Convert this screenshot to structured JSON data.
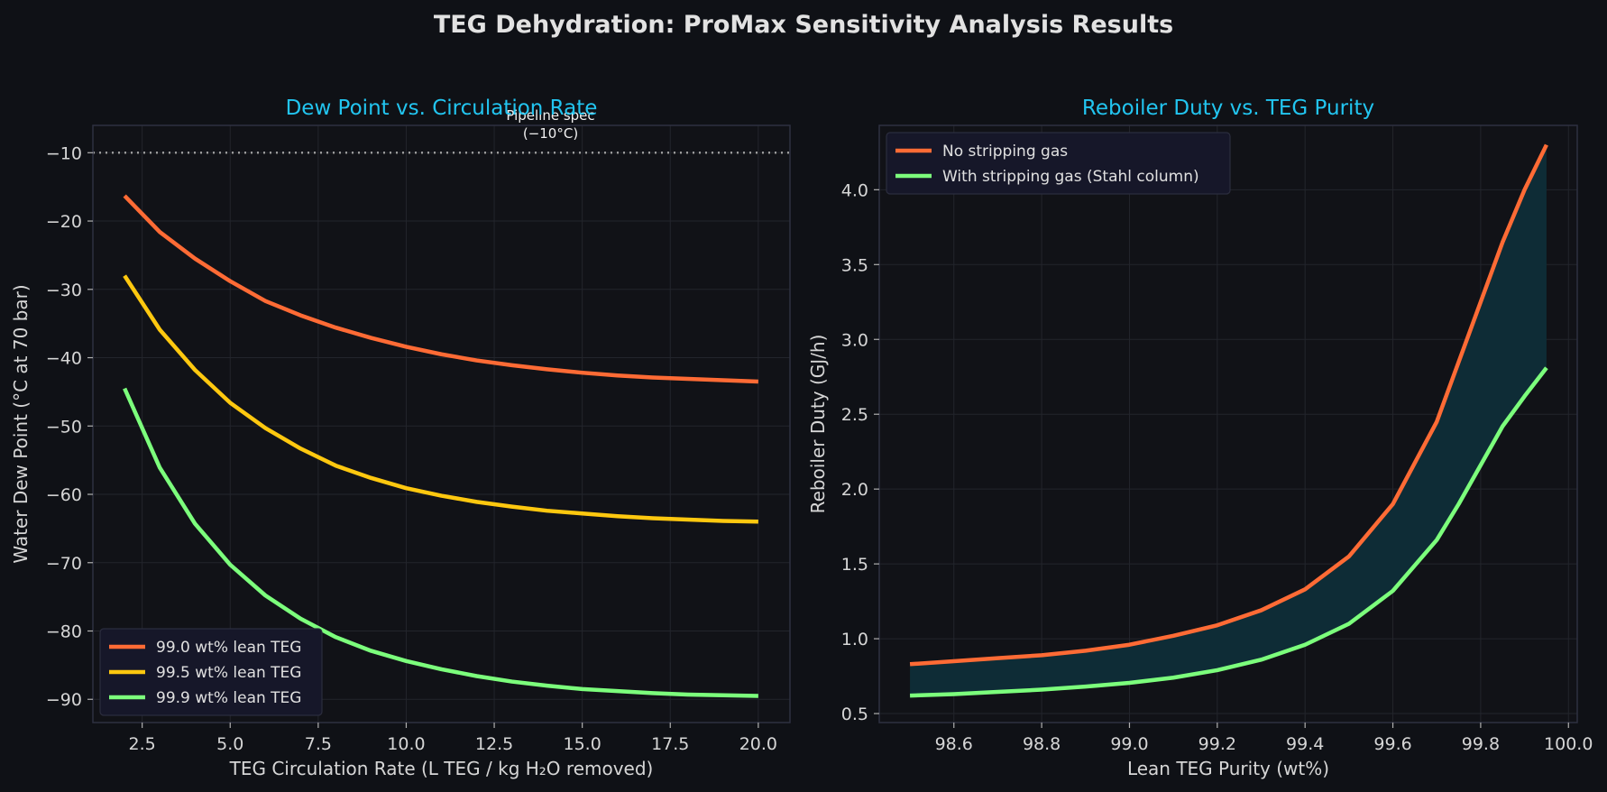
{
  "figure": {
    "title": "TEG Dehydration: ProMax Sensitivity Analysis Results",
    "colors": {
      "background": "#0f1116",
      "axes_face": "#111217",
      "grid": "#23252c",
      "spine": "#2e3140",
      "text": "#d6d6d6",
      "subtitle": "#22c5f0",
      "legend_face": "#161729",
      "fill_between": "#0e2c36"
    }
  },
  "chart_data": [
    {
      "type": "line",
      "title": "Dew Point vs. Circulation Rate",
      "xlabel": "TEG Circulation Rate (L TEG / kg H₂O removed)",
      "ylabel": "Water Dew Point (°C at 70 bar)",
      "xlim": [
        1.1,
        20.9
      ],
      "ylim": [
        -93.4,
        -6.0
      ],
      "xticks": [
        2.5,
        5.0,
        7.5,
        10.0,
        12.5,
        15.0,
        17.5,
        20.0
      ],
      "yticks": [
        -90,
        -80,
        -70,
        -60,
        -50,
        -40,
        -30,
        -20,
        -10
      ],
      "grid": true,
      "legend_position": "lower-left",
      "series": [
        {
          "name": "99.0 wt% lean TEG",
          "color": "#ff6b35",
          "x": [
            2.0,
            3.0,
            4.0,
            5.0,
            6.0,
            7.0,
            8.0,
            9.0,
            10.0,
            11.0,
            12.0,
            13.0,
            14.0,
            15.0,
            16.0,
            17.0,
            18.0,
            19.0,
            20.0
          ],
          "y": [
            -16.3,
            -21.6,
            -25.5,
            -28.8,
            -31.7,
            -33.8,
            -35.6,
            -37.1,
            -38.4,
            -39.5,
            -40.4,
            -41.1,
            -41.7,
            -42.2,
            -42.6,
            -42.9,
            -43.1,
            -43.3,
            -43.5
          ]
        },
        {
          "name": "99.5 wt% lean TEG",
          "color": "#ffc80f",
          "x": [
            2.0,
            3.0,
            4.0,
            5.0,
            6.0,
            7.0,
            8.0,
            9.0,
            10.0,
            11.0,
            12.0,
            13.0,
            14.0,
            15.0,
            16.0,
            17.0,
            18.0,
            19.0,
            20.0
          ],
          "y": [
            -28.0,
            -35.9,
            -41.8,
            -46.6,
            -50.3,
            -53.3,
            -55.8,
            -57.6,
            -59.1,
            -60.2,
            -61.1,
            -61.8,
            -62.4,
            -62.8,
            -63.2,
            -63.5,
            -63.7,
            -63.9,
            -64.0
          ]
        },
        {
          "name": "99.9 wt% lean TEG",
          "color": "#7cff7c",
          "x": [
            2.0,
            3.0,
            4.0,
            5.0,
            6.0,
            7.0,
            8.0,
            9.0,
            10.0,
            11.0,
            12.0,
            13.0,
            14.0,
            15.0,
            16.0,
            17.0,
            18.0,
            19.0,
            20.0
          ],
          "y": [
            -44.5,
            -56.1,
            -64.3,
            -70.3,
            -74.8,
            -78.2,
            -80.9,
            -82.9,
            -84.4,
            -85.6,
            -86.6,
            -87.4,
            -88.0,
            -88.5,
            -88.8,
            -89.1,
            -89.3,
            -89.4,
            -89.5
          ]
        }
      ],
      "reference_line": {
        "y": -10,
        "label": "Pipeline spec\n(−10°C)",
        "color": "#9a9a9a"
      }
    },
    {
      "type": "line",
      "title": "Reboiler Duty vs. TEG Purity",
      "xlabel": "Lean TEG Purity (wt%)",
      "ylabel": "Reboiler Duty (GJ/h)",
      "xlim": [
        98.43,
        100.02
      ],
      "ylim": [
        0.44,
        4.43
      ],
      "xticks": [
        98.6,
        98.8,
        99.0,
        99.2,
        99.4,
        99.6,
        99.8,
        100.0
      ],
      "xtick_labels": [
        "98.6",
        "98.8",
        "99.0",
        "99.2",
        "99.4",
        "99.6",
        "99.8",
        "100.0"
      ],
      "yticks": [
        0.5,
        1.0,
        1.5,
        2.0,
        2.5,
        3.0,
        3.5,
        4.0
      ],
      "grid": true,
      "legend_position": "top-left",
      "fill_between_series": true,
      "series": [
        {
          "name": "No stripping gas",
          "color": "#ff6b35",
          "x": [
            98.5,
            98.6,
            98.7,
            98.8,
            98.9,
            99.0,
            99.1,
            99.2,
            99.3,
            99.4,
            99.5,
            99.6,
            99.7,
            99.75,
            99.8,
            99.85,
            99.9,
            99.95
          ],
          "y": [
            0.83,
            0.85,
            0.87,
            0.89,
            0.92,
            0.96,
            1.02,
            1.09,
            1.19,
            1.33,
            1.55,
            1.9,
            2.45,
            2.85,
            3.25,
            3.65,
            4.0,
            4.3
          ]
        },
        {
          "name": "With stripping gas (Stahl column)",
          "color": "#7cff7c",
          "x": [
            98.5,
            98.6,
            98.7,
            98.8,
            98.9,
            99.0,
            99.1,
            99.2,
            99.3,
            99.4,
            99.5,
            99.6,
            99.7,
            99.75,
            99.8,
            99.85,
            99.9,
            99.95
          ],
          "y": [
            0.62,
            0.63,
            0.645,
            0.66,
            0.68,
            0.705,
            0.74,
            0.79,
            0.86,
            0.96,
            1.1,
            1.32,
            1.66,
            1.9,
            2.16,
            2.42,
            2.62,
            2.81
          ]
        }
      ]
    }
  ]
}
